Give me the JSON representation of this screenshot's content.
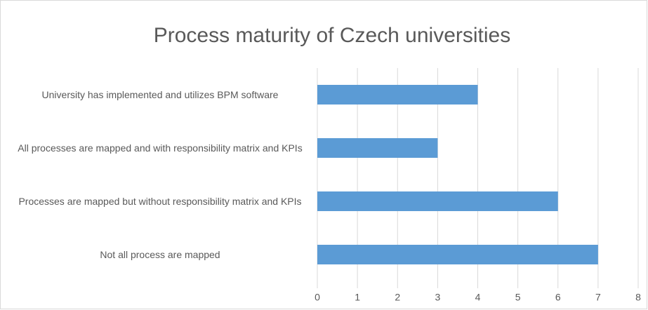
{
  "chart_data": {
    "type": "bar",
    "orientation": "horizontal",
    "title": "Process maturity of Czech universities",
    "categories": [
      "University has implemented and utilizes BPM software",
      "All processes are mapped and with responsibility matrix and KPIs",
      "Processes are mapped but without responsibility matrix and KPIs",
      "Not all process are mapped"
    ],
    "values": [
      4,
      3,
      6,
      7
    ],
    "color": "#5b9bd5",
    "xlim": [
      0,
      8
    ],
    "xticks": [
      0,
      1,
      2,
      3,
      4,
      5,
      6,
      7,
      8
    ],
    "grid": true
  }
}
